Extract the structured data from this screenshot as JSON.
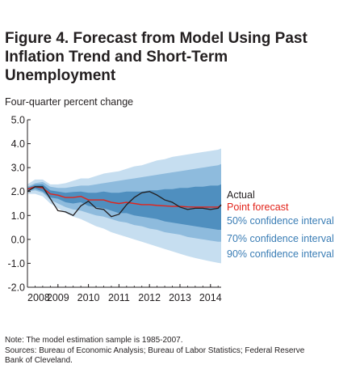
{
  "figure": {
    "title_line1": "Figure 4. Forecast from Model Using Past",
    "title_line2": "Inflation Trend and Short-Term Unemployment"
  },
  "notes": {
    "note": "Note: The model estimation sample is 1985-2007.",
    "sources_line1": "Sources: Bureau of Economic Analysis; Bureau of Labor Statistics; Federal Reserve",
    "sources_line2": "Bank of Cleveland."
  },
  "chart_data": {
    "type": "area",
    "ylabel": "Four-quarter percent change",
    "xlabel": "",
    "title": "Figure 4. Forecast from Model Using Past Inflation Trend and Short-Term Unemployment",
    "ylim": [
      -2.0,
      5.0
    ],
    "xlim": [
      2008.0,
      2014.35
    ],
    "y_ticks": [
      "5.0",
      "4.0",
      "3.0",
      "2.0",
      "1.0",
      "0.0",
      "-1.0",
      "-2.0"
    ],
    "x_ticks": [
      "2008",
      "2009",
      "2010",
      "2011",
      "2012",
      "2013",
      "2014"
    ],
    "grid": false,
    "legend_placement": "right",
    "colors": {
      "actual": "#231f20",
      "point": "#e2231a",
      "band50": "#4f8fbf",
      "band70": "#8ebbdd",
      "band90": "#c6def0"
    },
    "x": [
      2008.0,
      2008.25,
      2008.5,
      2008.75,
      2009.0,
      2009.25,
      2009.5,
      2009.75,
      2010.0,
      2010.25,
      2010.5,
      2010.75,
      2011.0,
      2011.25,
      2011.5,
      2011.75,
      2012.0,
      2012.25,
      2012.5,
      2012.75,
      2013.0,
      2013.25,
      2013.5,
      2013.75,
      2014.0,
      2014.25,
      2014.35
    ],
    "series": [
      {
        "name": "Actual",
        "values": [
          2.0,
          2.2,
          2.2,
          1.7,
          1.2,
          1.15,
          1.0,
          1.4,
          1.6,
          1.3,
          1.25,
          0.95,
          1.05,
          1.45,
          1.75,
          1.95,
          2.0,
          1.85,
          1.65,
          1.55,
          1.35,
          1.25,
          1.3,
          1.3,
          1.25,
          1.3,
          1.45
        ]
      },
      {
        "name": "Point forecast",
        "values": [
          2.1,
          2.2,
          2.15,
          1.9,
          1.85,
          1.75,
          1.75,
          1.8,
          1.65,
          1.65,
          1.65,
          1.55,
          1.5,
          1.55,
          1.5,
          1.45,
          1.45,
          1.42,
          1.4,
          1.38,
          1.38,
          1.36,
          1.35,
          1.35,
          1.35,
          1.35,
          1.42
        ]
      }
    ],
    "bands": [
      {
        "name": "90% confidence interval",
        "upper": [
          2.3,
          2.5,
          2.5,
          2.3,
          2.3,
          2.35,
          2.45,
          2.55,
          2.55,
          2.65,
          2.75,
          2.8,
          2.85,
          2.95,
          3.05,
          3.1,
          3.2,
          3.3,
          3.35,
          3.45,
          3.5,
          3.55,
          3.6,
          3.65,
          3.7,
          3.75,
          3.8
        ],
        "lower": [
          1.9,
          1.9,
          1.8,
          1.5,
          1.3,
          1.1,
          0.95,
          0.85,
          0.7,
          0.55,
          0.45,
          0.3,
          0.2,
          0.1,
          0.0,
          -0.1,
          -0.2,
          -0.3,
          -0.4,
          -0.5,
          -0.6,
          -0.7,
          -0.78,
          -0.85,
          -0.92,
          -0.98,
          -1.0
        ]
      },
      {
        "name": "70% confidence interval",
        "upper": [
          2.2,
          2.35,
          2.4,
          2.2,
          2.15,
          2.15,
          2.2,
          2.25,
          2.25,
          2.3,
          2.35,
          2.4,
          2.45,
          2.5,
          2.55,
          2.6,
          2.65,
          2.7,
          2.75,
          2.8,
          2.85,
          2.9,
          2.95,
          3.0,
          3.05,
          3.1,
          3.15
        ],
        "lower": [
          2.0,
          2.05,
          1.95,
          1.65,
          1.5,
          1.35,
          1.25,
          1.2,
          1.1,
          1.0,
          0.95,
          0.85,
          0.75,
          0.7,
          0.6,
          0.55,
          0.45,
          0.4,
          0.3,
          0.25,
          0.2,
          0.1,
          0.05,
          0.0,
          -0.05,
          -0.1,
          -0.1
        ]
      },
      {
        "name": "50% confidence interval",
        "upper": [
          2.15,
          2.28,
          2.3,
          2.05,
          2.0,
          1.95,
          1.98,
          2.0,
          1.95,
          1.95,
          2.0,
          1.95,
          1.95,
          2.0,
          2.0,
          2.0,
          2.05,
          2.05,
          2.1,
          2.1,
          2.15,
          2.15,
          2.2,
          2.2,
          2.25,
          2.25,
          2.3
        ],
        "lower": [
          2.05,
          2.12,
          2.0,
          1.75,
          1.7,
          1.55,
          1.5,
          1.55,
          1.4,
          1.35,
          1.3,
          1.2,
          1.1,
          1.1,
          1.0,
          0.95,
          0.9,
          0.85,
          0.75,
          0.7,
          0.65,
          0.6,
          0.55,
          0.5,
          0.45,
          0.4,
          0.4
        ]
      }
    ],
    "legend": [
      {
        "label": "Actual",
        "color": "#231f20"
      },
      {
        "label": "Point forecast",
        "color": "#e2231a"
      },
      {
        "label": "50% confidence interval",
        "color": "#3a7db5"
      },
      {
        "label": "70% confidence interval",
        "color": "#3a7db5"
      },
      {
        "label": "90% confidence interval",
        "color": "#3a7db5"
      }
    ]
  }
}
